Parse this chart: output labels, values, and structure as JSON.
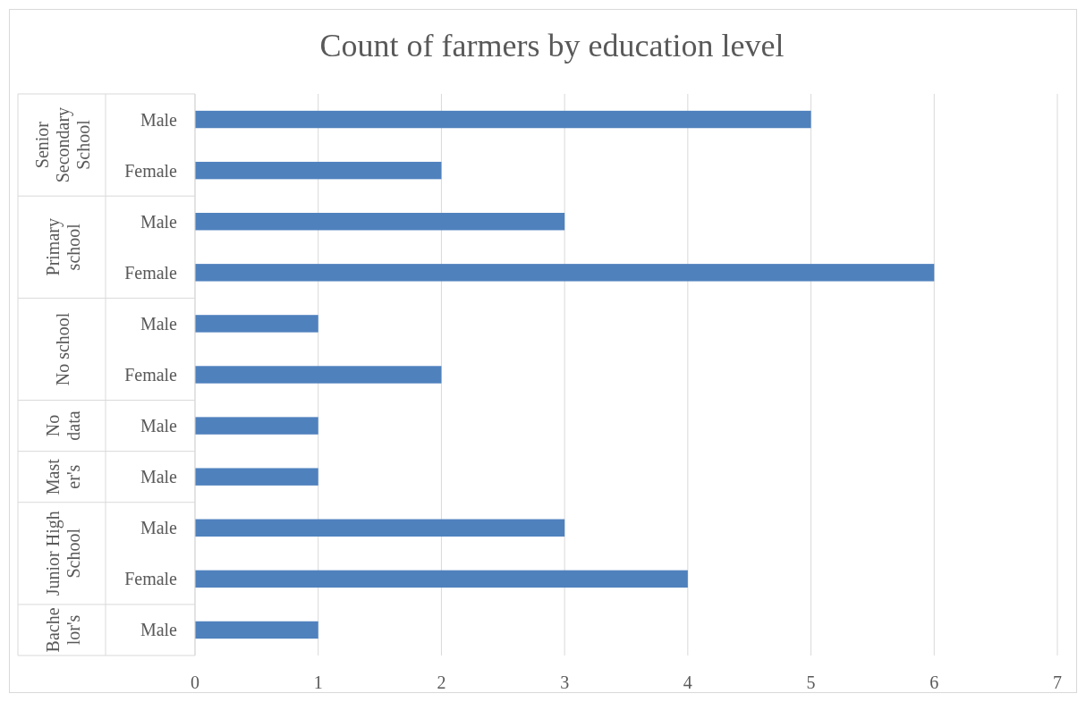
{
  "chart_data": {
    "type": "bar",
    "orientation": "horizontal",
    "title": "Count of farmers by education level",
    "categories": [
      "Male",
      "Female",
      "Male",
      "Female",
      "Male",
      "Female",
      "Male",
      "Male",
      "Male",
      "Female",
      "Male"
    ],
    "values": [
      5,
      2,
      3,
      6,
      1,
      2,
      1,
      1,
      3,
      4,
      1
    ],
    "color": "#4f81bd",
    "annotations": [
      "Senior Secondary School",
      "Primary school",
      "No school",
      "No data",
      "Master's",
      "Junior High School",
      "Bachelor's"
    ],
    "xlim": [
      0,
      7
    ],
    "xticks": [
      0,
      1,
      2,
      3,
      4,
      5,
      6,
      7
    ],
    "grid": "x"
  }
}
